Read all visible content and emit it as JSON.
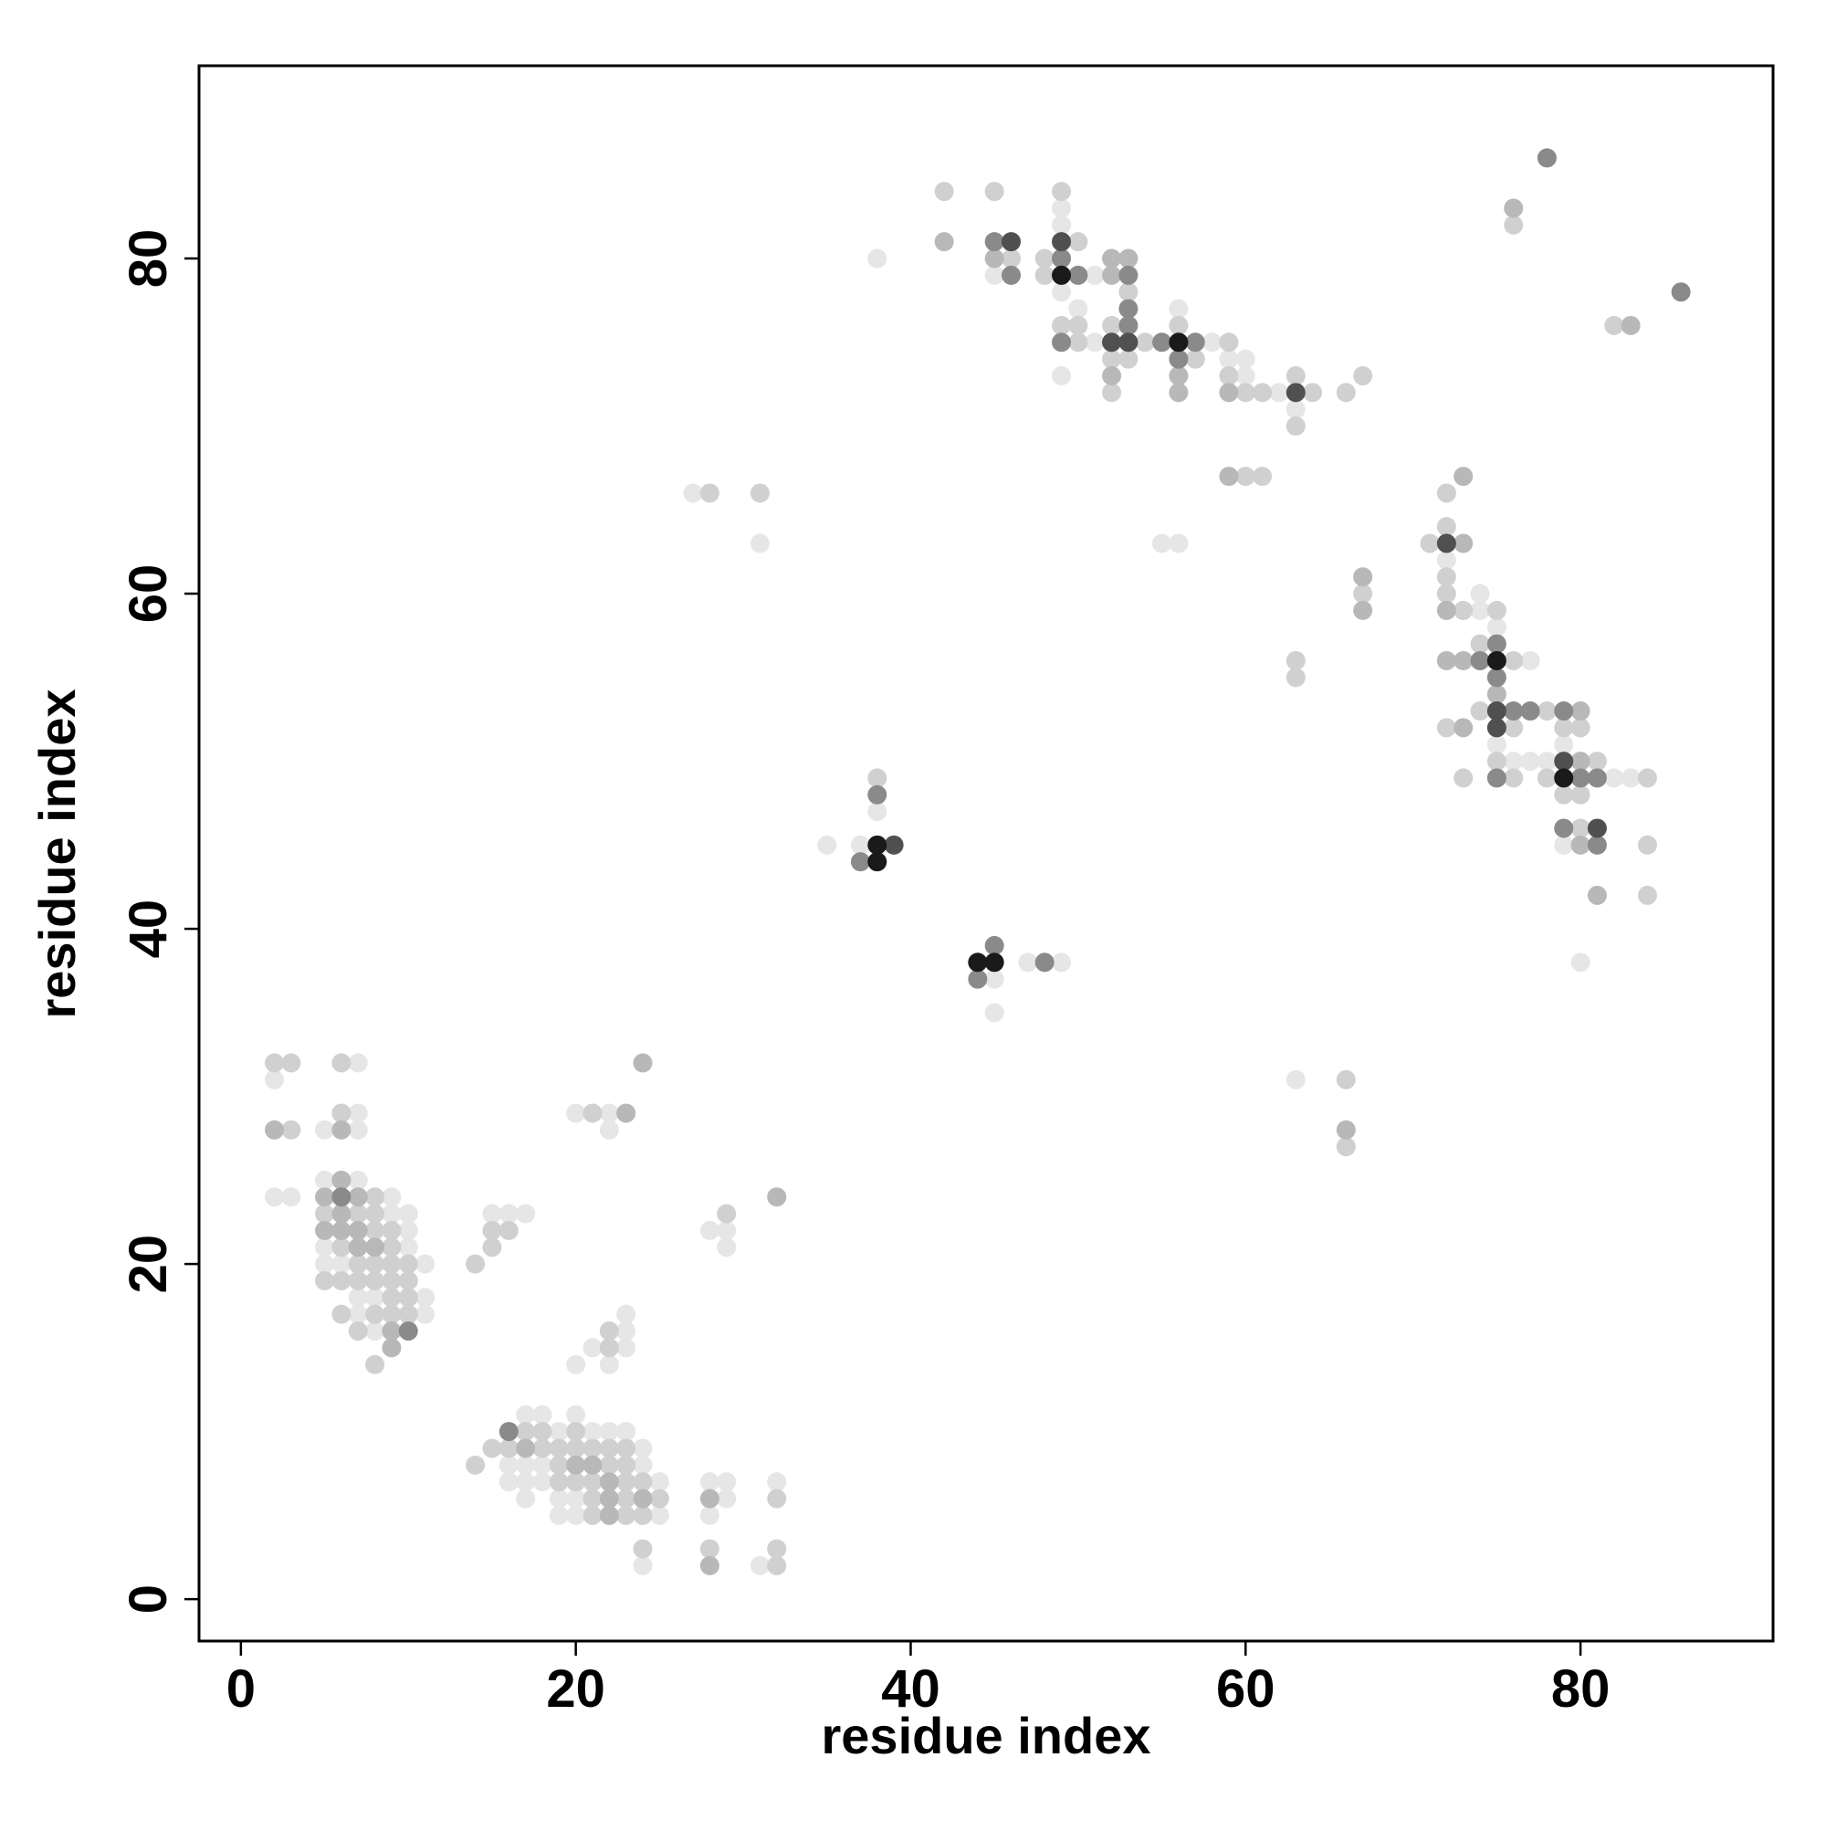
{
  "chart_data": {
    "type": "scatter",
    "xlabel": "residue index",
    "ylabel": "residue index",
    "xlim": [
      -2.5,
      91.5
    ],
    "ylim": [
      -2.5,
      91.5
    ],
    "xticks": [
      0,
      20,
      40,
      60,
      80
    ],
    "yticks": [
      0,
      20,
      40,
      60,
      80
    ],
    "grid": false,
    "series": [
      {
        "color": "#e6e6e6",
        "x": [
          38,
          45,
          49,
          49,
          49,
          49,
          50,
          51,
          51,
          55,
          56,
          56,
          58,
          59,
          60,
          60,
          62,
          63,
          63,
          72,
          74,
          74,
          75,
          75,
          76,
          77,
          77,
          78,
          79,
          79,
          80,
          82,
          83,
          27,
          31,
          35,
          37,
          38,
          45,
          45,
          47,
          49,
          2,
          2,
          3,
          7,
          7,
          5,
          7,
          5,
          7,
          9,
          9,
          10,
          10,
          5,
          10,
          5,
          6,
          11,
          7,
          8,
          11,
          7,
          11,
          8,
          15,
          16,
          17,
          20,
          21,
          23,
          23,
          22,
          23,
          20,
          22,
          22,
          28,
          29,
          29,
          17,
          18,
          20,
          19,
          21,
          22,
          23,
          24,
          16,
          17,
          18,
          24,
          16,
          17,
          18,
          25,
          17,
          19,
          20,
          19,
          20,
          25,
          24,
          28,
          29,
          29,
          28,
          32,
          31
        ],
        "y": [
          80,
          79,
          83,
          82,
          78,
          73,
          77,
          79,
          75,
          63,
          77,
          63,
          75,
          74,
          74,
          73,
          72,
          71,
          31,
          62,
          60,
          59,
          58,
          51,
          50,
          56,
          50,
          50,
          51,
          45,
          38,
          49,
          49,
          66,
          63,
          45,
          45,
          47,
          37,
          35,
          38,
          38,
          31,
          24,
          24,
          32,
          29,
          28,
          28,
          25,
          25,
          24,
          23,
          23,
          22,
          21,
          21,
          20,
          20,
          20,
          18,
          18,
          18,
          17,
          17,
          16,
          23,
          23,
          23,
          14,
          15,
          16,
          15,
          14,
          17,
          29,
          29,
          28,
          22,
          22,
          21,
          11,
          11,
          11,
          10,
          10,
          10,
          10,
          9,
          8,
          8,
          8,
          8,
          7,
          7,
          7,
          7,
          6,
          6,
          6,
          5,
          5,
          5,
          2,
          7,
          7,
          6,
          5,
          7,
          2
        ]
      },
      {
        "color": "#d0d0d0",
        "x": [
          42,
          45,
          46,
          48,
          48,
          49,
          49,
          50,
          50,
          50,
          52,
          52,
          52,
          53,
          53,
          54,
          56,
          57,
          59,
          59,
          60,
          60,
          61,
          61,
          63,
          63,
          63,
          63,
          64,
          66,
          66,
          66,
          67,
          67,
          71,
          72,
          72,
          72,
          72,
          72,
          73,
          73,
          74,
          74,
          75,
          75,
          76,
          76,
          76,
          76,
          78,
          78,
          79,
          79,
          80,
          80,
          80,
          81,
          82,
          84,
          84,
          84,
          28,
          31,
          38,
          2,
          3,
          3,
          6,
          6,
          7,
          8,
          5,
          8,
          8,
          9,
          6,
          9,
          7,
          8,
          9,
          10,
          5,
          6,
          7,
          8,
          9,
          10,
          9,
          10,
          6,
          8,
          9,
          10,
          7,
          8,
          15,
          16,
          15,
          14,
          22,
          22,
          21,
          29,
          14,
          15,
          16,
          17,
          18,
          20,
          18,
          19,
          20,
          21,
          22,
          23,
          19,
          22,
          23,
          19,
          20,
          21,
          23,
          24,
          21,
          23,
          25,
          21,
          23,
          24,
          24,
          28,
          32,
          32,
          32
        ],
        "y": [
          84,
          84,
          80,
          80,
          79,
          84,
          76,
          81,
          76,
          75,
          76,
          74,
          72,
          78,
          74,
          75,
          76,
          74,
          75,
          73,
          72,
          67,
          72,
          67,
          73,
          70,
          56,
          55,
          72,
          72,
          31,
          27,
          73,
          60,
          63,
          66,
          64,
          61,
          60,
          52,
          59,
          49,
          57,
          53,
          59,
          50,
          82,
          56,
          52,
          49,
          53,
          49,
          52,
          48,
          52,
          48,
          46,
          50,
          76,
          49,
          45,
          42,
          66,
          66,
          49,
          32,
          32,
          28,
          32,
          29,
          23,
          23,
          23,
          24,
          22,
          22,
          21,
          21,
          20,
          20,
          20,
          20,
          19,
          19,
          19,
          19,
          19,
          19,
          18,
          18,
          17,
          17,
          17,
          17,
          16,
          14,
          22,
          22,
          21,
          20,
          16,
          15,
          29,
          23,
          8,
          9,
          9,
          10,
          10,
          10,
          9,
          9,
          9,
          9,
          9,
          9,
          8,
          8,
          8,
          7,
          7,
          7,
          7,
          7,
          6,
          6,
          6,
          5,
          5,
          5,
          3,
          3,
          6,
          3,
          2
        ]
      },
      {
        "color": "#b8b8b8",
        "x": [
          42,
          45,
          52,
          52,
          52,
          53,
          56,
          56,
          59,
          59,
          66,
          67,
          67,
          72,
          72,
          73,
          73,
          73,
          73,
          75,
          76,
          80,
          80,
          80,
          81,
          83,
          2,
          6,
          6,
          5,
          7,
          6,
          5,
          6,
          7,
          7,
          8,
          9,
          9,
          23,
          24,
          32,
          17,
          20,
          21,
          22,
          22,
          24,
          22,
          28,
          28
        ],
        "y": [
          81,
          80,
          80,
          79,
          73,
          80,
          73,
          72,
          72,
          67,
          28,
          61,
          59,
          59,
          56,
          67,
          63,
          56,
          52,
          54,
          83,
          53,
          50,
          45,
          42,
          76,
          28,
          28,
          25,
          24,
          24,
          23,
          22,
          22,
          22,
          21,
          21,
          16,
          15,
          29,
          32,
          24,
          9,
          8,
          8,
          7,
          6,
          6,
          5,
          6,
          2
        ]
      },
      {
        "color": "#8a8a8a",
        "x": [
          45,
          46,
          49,
          50,
          53,
          53,
          53,
          55,
          56,
          57,
          74,
          75,
          75,
          75,
          76,
          77,
          78,
          79,
          79,
          80,
          81,
          81,
          86,
          37,
          38,
          44,
          45,
          48,
          6,
          10,
          16,
          49
        ],
        "y": [
          81,
          79,
          75,
          79,
          79,
          77,
          76,
          75,
          74,
          75,
          56,
          57,
          55,
          49,
          53,
          53,
          86,
          53,
          46,
          49,
          49,
          45,
          78,
          44,
          48,
          37,
          39,
          38,
          24,
          16,
          10,
          80
        ]
      },
      {
        "color": "#505050",
        "x": [
          46,
          49,
          52,
          53,
          63,
          72,
          75,
          75,
          79,
          81,
          39
        ],
        "y": [
          81,
          81,
          75,
          75,
          72,
          63,
          53,
          52,
          50,
          46,
          45
        ]
      },
      {
        "color": "#1a1a1a",
        "x": [
          49,
          56,
          75,
          79,
          38,
          38,
          44,
          45
        ],
        "y": [
          79,
          75,
          56,
          49,
          45,
          44,
          38,
          38
        ]
      }
    ]
  }
}
